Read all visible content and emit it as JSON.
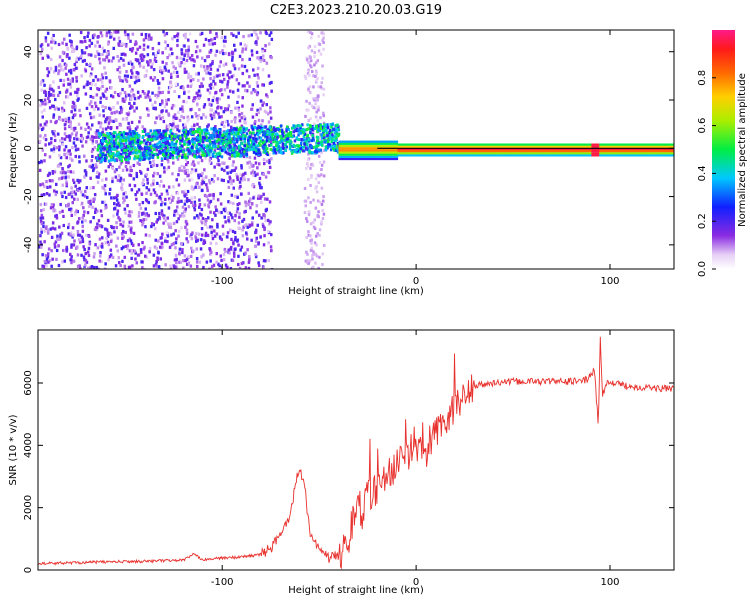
{
  "title": "C2E3.2023.210.20.03.G19",
  "colors": {
    "snr_line": "#e8302c",
    "axis": "#000000",
    "background": "#ffffff"
  },
  "chart_data": [
    {
      "type": "heatmap",
      "title": "C2E3.2023.210.20.03.G19",
      "xlabel": "Height of straight line (km)",
      "ylabel": "Frequency (Hz)",
      "xlim": [
        -195,
        133
      ],
      "ylim": [
        -50,
        49
      ],
      "x_ticks": [
        -100,
        0,
        100
      ],
      "y_ticks": [
        -40,
        -20,
        0,
        20,
        40
      ],
      "colorbar": {
        "label": "Normalized spectral amplitude",
        "range": [
          0,
          1
        ],
        "ticks": [
          "0.0",
          "0.2",
          "0.4",
          "0.6",
          "0.8"
        ],
        "colormap": "rainbow: white → violet → blue → cyan → green → yellow → orange → red → magenta"
      },
      "features": [
        {
          "height_km": [
            -195,
            -80
          ],
          "frequency_hz": [
            -50,
            49
          ],
          "amplitude": "low (0.05-0.25), scattered noise"
        },
        {
          "height_km": [
            -60,
            -48
          ],
          "frequency_hz": [
            -50,
            49
          ],
          "amplitude": "low (0.05-0.1), sparse noise"
        },
        {
          "height_km": [
            -165,
            -40
          ],
          "frequency_hz": [
            -5,
            10
          ],
          "amplitude": "0.3-0.6 band rising toward 5 Hz"
        },
        {
          "height_km": [
            -40,
            133
          ],
          "frequency_hz": [
            -2,
            2
          ],
          "amplitude": "0.7-1.0 narrow carrier line at 0 Hz"
        }
      ]
    },
    {
      "type": "line",
      "xlabel": "Height of straight line (km)",
      "ylabel": "SNR (10 * v/v)",
      "xlim": [
        -195,
        133
      ],
      "ylim": [
        0,
        7700
      ],
      "x_ticks": [
        -100,
        0,
        100
      ],
      "y_ticks": [
        0,
        2000,
        4000,
        6000
      ],
      "series": [
        {
          "x": [
            -195,
            -180,
            -160,
            -140,
            -120,
            -115,
            -110,
            -100,
            -90,
            -80,
            -75,
            -70,
            -65,
            -62,
            -60,
            -57,
            -55,
            -50,
            -45,
            -40,
            -35,
            -32,
            -30,
            -28,
            -25,
            -20,
            -15,
            -10,
            -5,
            0,
            5,
            10,
            15,
            20,
            25,
            30,
            40,
            50,
            60,
            70,
            80,
            88,
            92,
            94,
            95,
            96,
            98,
            100,
            110,
            120,
            133
          ],
          "y": [
            200,
            230,
            260,
            280,
            320,
            500,
            340,
            380,
            420,
            500,
            700,
            1100,
            1800,
            2800,
            3400,
            2400,
            1300,
            600,
            400,
            450,
            900,
            1800,
            2300,
            1700,
            2400,
            2600,
            3000,
            3400,
            3700,
            4000,
            3600,
            4400,
            4800,
            5200,
            5600,
            5900,
            6000,
            6050,
            6050,
            6050,
            6050,
            6100,
            6400,
            4600,
            7500,
            5600,
            6000,
            6000,
            5900,
            5850,
            5800
          ]
        }
      ]
    }
  ]
}
